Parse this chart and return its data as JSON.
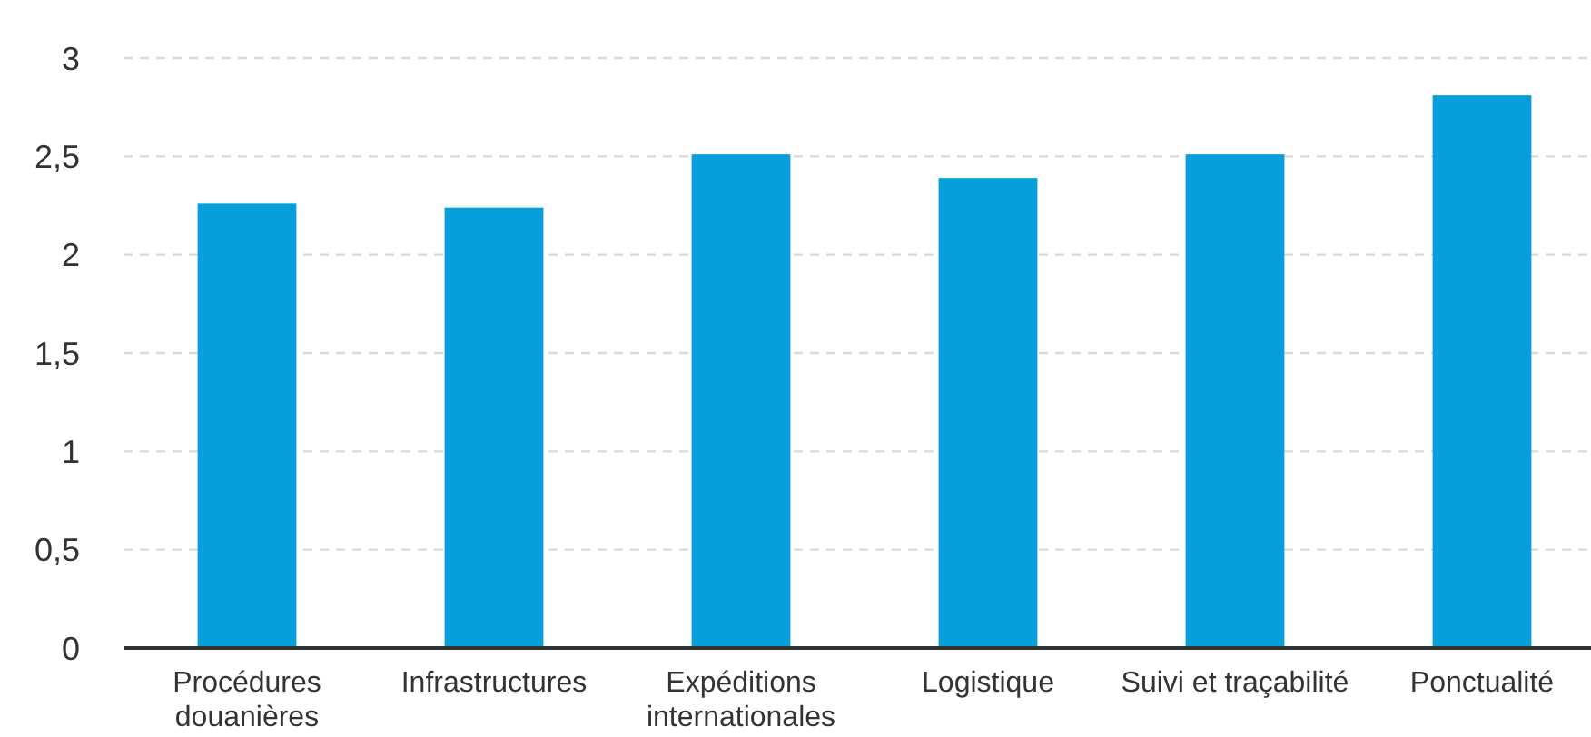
{
  "chart_data": {
    "type": "bar",
    "categories": [
      "Procédures douanières",
      "Infrastructures",
      "Expéditions internationales",
      "Logistique",
      "Suivi et traçabilité",
      "Ponctualité"
    ],
    "values": [
      2.26,
      2.24,
      2.51,
      2.39,
      2.51,
      2.81
    ],
    "color": "#079fdb",
    "ylim": [
      0,
      3
    ],
    "yticks": [
      0,
      {
        "value": 0.5,
        "label": "0,5"
      },
      1,
      {
        "value": 1.5,
        "label": "1,5"
      },
      2,
      {
        "value": 2.5,
        "label": "2,5"
      },
      3
    ],
    "grid": "y"
  }
}
